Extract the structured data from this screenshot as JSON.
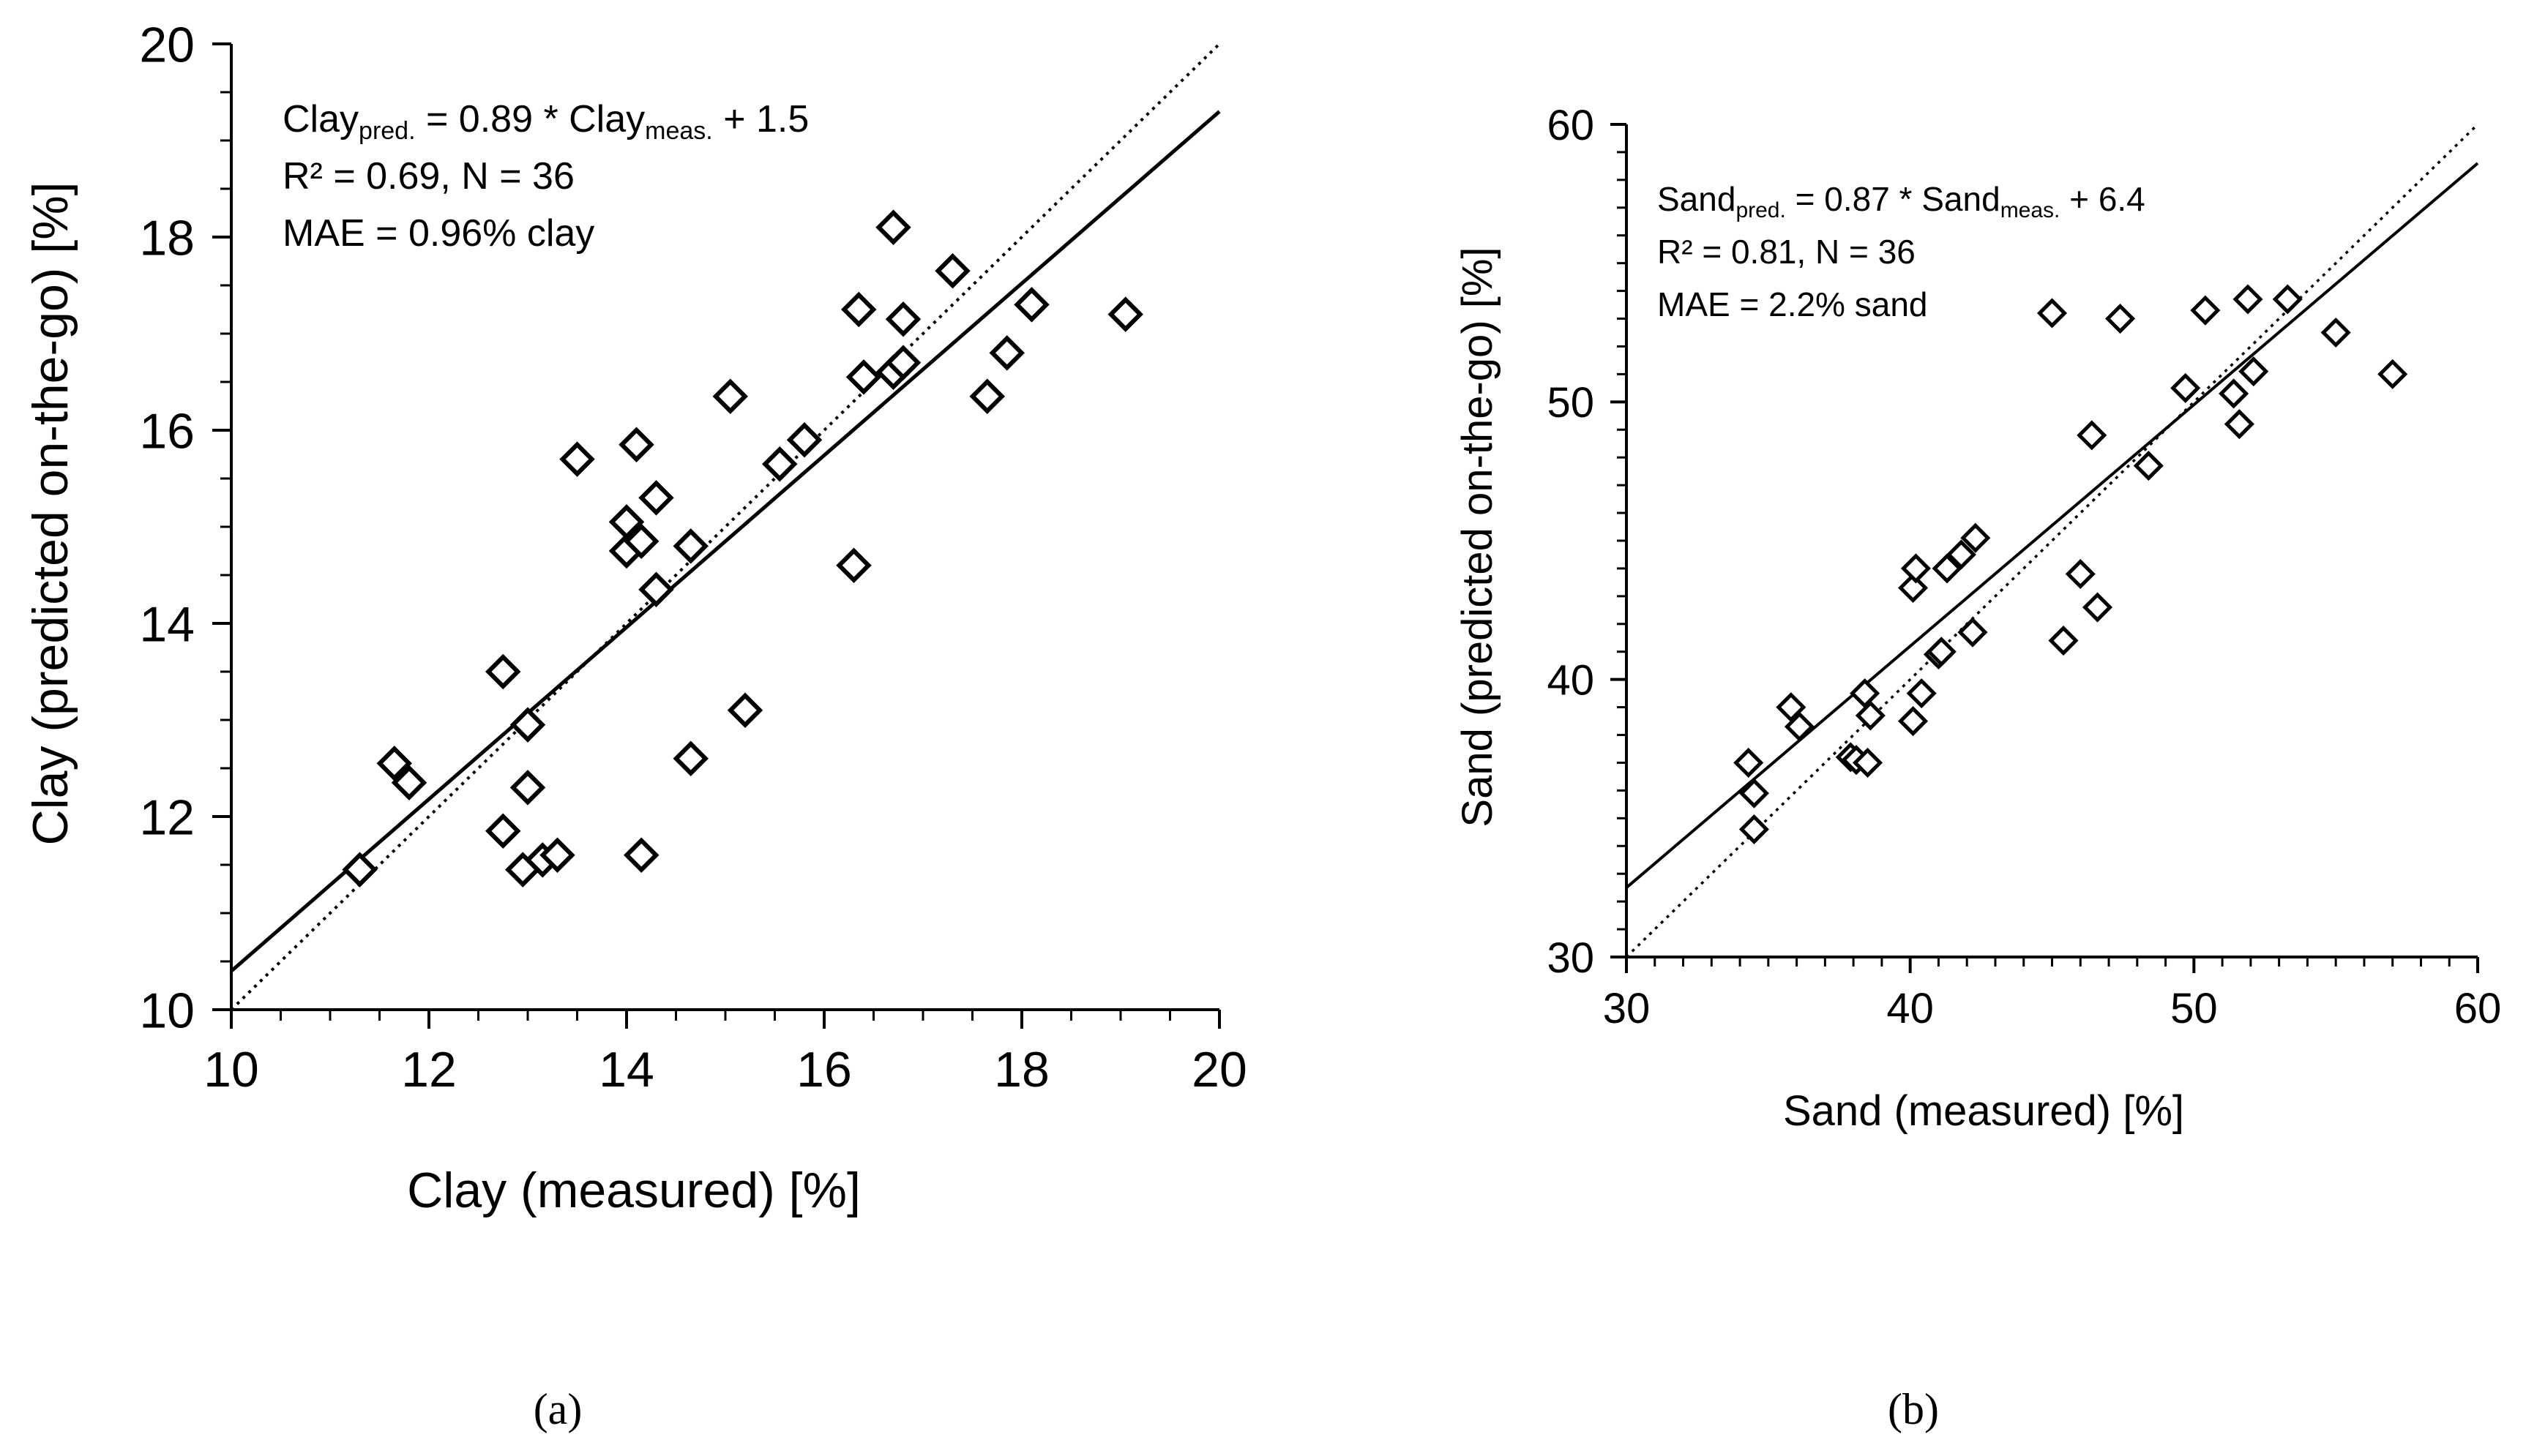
{
  "chart_data": [
    {
      "type": "scatter",
      "panel_label": "(a)",
      "xlabel": "Clay (measured) [%]",
      "ylabel": "Clay  (predicted on-the-go) [%]",
      "xlim": [
        10,
        20
      ],
      "ylim": [
        10,
        20
      ],
      "xticks": [
        10,
        12,
        14,
        16,
        18,
        20
      ],
      "yticks": [
        10,
        12,
        14,
        16,
        18,
        20
      ],
      "minor_step": 0.5,
      "grid": false,
      "marker": "diamond-open",
      "annotation": {
        "eq_main": "Clay",
        "eq_sub_pred": "pred.",
        "eq_mid": " = 0.89 * Clay",
        "eq_sub_meas": "meas.",
        "eq_end": " + 1.5",
        "r2_line": "R² = 0.69, N = 36",
        "mae_line": "MAE = 0.96% clay"
      },
      "regression": {
        "slope": 0.89,
        "intercept": 1.5,
        "style": "solid"
      },
      "identity_line": {
        "style": "dotted"
      },
      "points": [
        [
          11.3,
          11.45
        ],
        [
          11.65,
          12.55
        ],
        [
          11.8,
          12.35
        ],
        [
          12.75,
          13.5
        ],
        [
          12.75,
          11.85
        ],
        [
          13.0,
          12.95
        ],
        [
          13.0,
          12.3
        ],
        [
          12.95,
          11.45
        ],
        [
          13.15,
          11.55
        ],
        [
          13.3,
          11.6
        ],
        [
          13.5,
          15.7
        ],
        [
          14.0,
          15.05
        ],
        [
          14.0,
          14.75
        ],
        [
          14.1,
          15.85
        ],
        [
          14.15,
          14.85
        ],
        [
          14.15,
          11.6
        ],
        [
          14.3,
          15.3
        ],
        [
          14.3,
          14.35
        ],
        [
          14.65,
          14.8
        ],
        [
          14.65,
          12.6
        ],
        [
          15.05,
          16.35
        ],
        [
          15.2,
          13.1
        ],
        [
          15.55,
          15.65
        ],
        [
          15.8,
          15.9
        ],
        [
          16.3,
          14.6
        ],
        [
          16.35,
          17.25
        ],
        [
          16.4,
          16.55
        ],
        [
          16.7,
          18.1
        ],
        [
          16.7,
          16.6
        ],
        [
          16.8,
          17.15
        ],
        [
          16.8,
          16.7
        ],
        [
          17.3,
          17.65
        ],
        [
          17.65,
          16.35
        ],
        [
          17.85,
          16.8
        ],
        [
          18.1,
          17.3
        ],
        [
          19.05,
          17.2
        ]
      ]
    },
    {
      "type": "scatter",
      "panel_label": "(b)",
      "xlabel": "Sand (measured) [%]",
      "ylabel": "Sand  (predicted on-the-go) [%]",
      "xlim": [
        30,
        60
      ],
      "ylim": [
        30,
        60
      ],
      "xticks": [
        30,
        40,
        50,
        60
      ],
      "yticks": [
        30,
        40,
        50,
        60
      ],
      "minor_step": 1,
      "grid": false,
      "marker": "diamond-open",
      "annotation": {
        "eq_main": "Sand",
        "eq_sub_pred": "pred.",
        "eq_mid": " = 0.87 * Sand",
        "eq_sub_meas": "meas.",
        "eq_end": " + 6.4",
        "r2_line": "R² = 0.81, N = 36",
        "mae_line": "MAE = 2.2% sand"
      },
      "regression": {
        "slope": 0.87,
        "intercept": 6.4,
        "style": "solid"
      },
      "identity_line": {
        "style": "dotted"
      },
      "points": [
        [
          34.3,
          37.0
        ],
        [
          34.5,
          35.9
        ],
        [
          34.5,
          34.6
        ],
        [
          35.8,
          39.0
        ],
        [
          36.1,
          38.3
        ],
        [
          37.9,
          37.2
        ],
        [
          38.1,
          37.1
        ],
        [
          38.4,
          39.5
        ],
        [
          38.5,
          37.0
        ],
        [
          38.6,
          38.7
        ],
        [
          40.1,
          38.5
        ],
        [
          40.1,
          43.3
        ],
        [
          40.2,
          44.0
        ],
        [
          40.4,
          39.5
        ],
        [
          41.0,
          40.9
        ],
        [
          41.1,
          41.0
        ],
        [
          41.3,
          44.0
        ],
        [
          41.8,
          44.5
        ],
        [
          42.2,
          41.7
        ],
        [
          42.3,
          45.1
        ],
        [
          45.0,
          53.2
        ],
        [
          45.4,
          41.4
        ],
        [
          46.0,
          43.8
        ],
        [
          46.4,
          48.8
        ],
        [
          46.6,
          42.6
        ],
        [
          47.4,
          53.0
        ],
        [
          48.4,
          47.7
        ],
        [
          49.7,
          50.5
        ],
        [
          50.4,
          53.3
        ],
        [
          51.4,
          50.3
        ],
        [
          51.6,
          49.2
        ],
        [
          51.9,
          53.7
        ],
        [
          52.1,
          51.1
        ],
        [
          53.3,
          53.7
        ],
        [
          55.0,
          52.5
        ],
        [
          57.0,
          51.0
        ]
      ]
    }
  ]
}
